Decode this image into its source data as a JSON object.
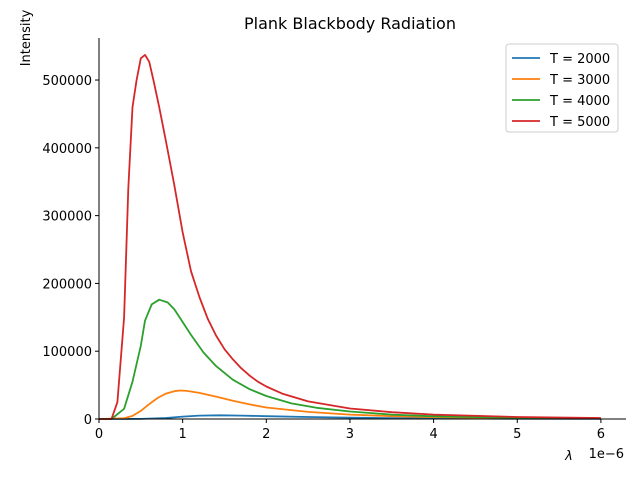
{
  "chart_data": {
    "type": "line",
    "title": "Plank Blackbody Radiation",
    "xlabel": "λ",
    "ylabel": "Intensity",
    "x_offset_label": "1e−6",
    "xlim": [
      0,
      6.3
    ],
    "ylim": [
      0,
      562000
    ],
    "x_ticks": [
      0,
      1,
      2,
      3,
      4,
      5,
      6
    ],
    "y_ticks": [
      0,
      100000,
      200000,
      300000,
      400000,
      500000
    ],
    "legend_position": "top-right",
    "grid": false,
    "series": [
      {
        "name": "T = 2000",
        "color": "#1f77b4",
        "x": [
          0,
          0.5,
          0.8,
          1.0,
          1.2,
          1.45,
          1.7,
          2.0,
          2.5,
          3.0,
          3.5,
          4.0,
          5.0,
          6.0
        ],
        "y": [
          0,
          200,
          1500,
          3500,
          5000,
          5400,
          5000,
          4200,
          3000,
          2000,
          1400,
          900,
          450,
          250
        ]
      },
      {
        "name": "T = 3000",
        "color": "#ff7f0e",
        "x": [
          0,
          0.3,
          0.4,
          0.5,
          0.6,
          0.7,
          0.8,
          0.9,
          0.97,
          1.05,
          1.2,
          1.4,
          1.6,
          1.8,
          2.0,
          2.5,
          3.0,
          3.5,
          4.0,
          5.0,
          6.0
        ],
        "y": [
          0,
          1000,
          4500,
          12000,
          22000,
          31000,
          37500,
          41000,
          42000,
          41500,
          38500,
          33000,
          27000,
          21500,
          17000,
          10500,
          6500,
          4200,
          2800,
          1300,
          700
        ]
      },
      {
        "name": "T = 4000",
        "color": "#2ca02c",
        "x": [
          0,
          0.15,
          0.3,
          0.4,
          0.5,
          0.55,
          0.63,
          0.72,
          0.82,
          0.9,
          1.0,
          1.1,
          1.25,
          1.4,
          1.6,
          1.8,
          2.0,
          2.3,
          2.6,
          3.0,
          3.5,
          4.0,
          5.0,
          6.0
        ],
        "y": [
          0,
          0,
          15000,
          55000,
          108000,
          145000,
          169000,
          176000,
          172000,
          162000,
          143000,
          124000,
          98000,
          78000,
          58000,
          44000,
          34000,
          23000,
          16500,
          11000,
          6500,
          4000,
          1800,
          900
        ]
      },
      {
        "name": "T = 5000",
        "color": "#d62728",
        "x": [
          0,
          0.15,
          0.22,
          0.3,
          0.35,
          0.4,
          0.45,
          0.5,
          0.55,
          0.6,
          0.65,
          0.72,
          0.8,
          0.9,
          1.0,
          1.1,
          1.2,
          1.3,
          1.4,
          1.5,
          1.6,
          1.7,
          1.8,
          1.9,
          2.0,
          2.2,
          2.5,
          3.0,
          3.5,
          4.0,
          5.0,
          6.0
        ],
        "y": [
          0,
          0,
          25000,
          150000,
          340000,
          460000,
          500000,
          532000,
          537000,
          527000,
          500000,
          460000,
          410000,
          345000,
          275000,
          218000,
          180000,
          148000,
          123000,
          103000,
          88000,
          75000,
          64000,
          55000,
          48000,
          37000,
          26000,
          15500,
          10000,
          6500,
          3000,
          1500
        ]
      }
    ]
  }
}
